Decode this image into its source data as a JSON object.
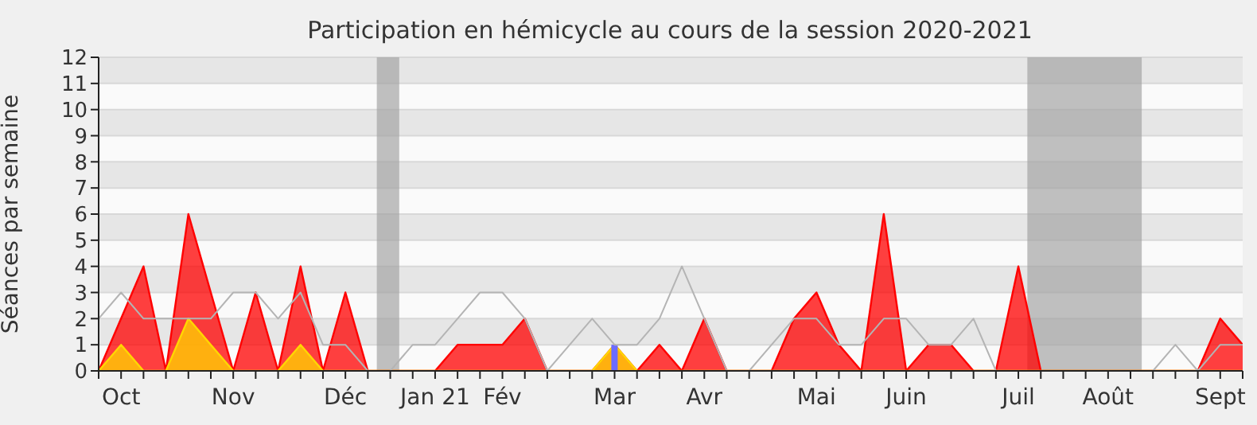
{
  "chart_data": {
    "type": "area",
    "title": "Participation en hémicycle au cours de la session 2020-2021",
    "ylabel": "Séances par semaine",
    "categories": [
      null,
      "Oct",
      null,
      null,
      null,
      null,
      "Nov",
      null,
      null,
      null,
      null,
      "Déc",
      null,
      null,
      null,
      "Jan 21",
      null,
      null,
      "Fév",
      null,
      null,
      null,
      null,
      "Mar",
      null,
      null,
      null,
      "Avr",
      null,
      null,
      null,
      null,
      "Mai",
      null,
      null,
      null,
      "Juin",
      null,
      null,
      null,
      null,
      "Juil",
      null,
      null,
      null,
      "Août",
      null,
      null,
      null,
      null,
      "Sept",
      null
    ],
    "ylim": [
      0,
      12
    ],
    "yticks": [
      0,
      1,
      2,
      3,
      4,
      5,
      6,
      7,
      8,
      9,
      10,
      11,
      12
    ],
    "grid": "y",
    "legend": false,
    "marker": "none",
    "series": [
      {
        "type": "line",
        "color": "#b4b4b4",
        "values": [
          2,
          3,
          2,
          2,
          2,
          2,
          3,
          3,
          2,
          3,
          1,
          1,
          0,
          0,
          1,
          1,
          2,
          3,
          3,
          2,
          0,
          1,
          2,
          1,
          1,
          2,
          4,
          2,
          0,
          0,
          1,
          2,
          2,
          1,
          1,
          2,
          2,
          1,
          1,
          2,
          0,
          0,
          0,
          0,
          0,
          0,
          0,
          0,
          1,
          0,
          1,
          1
        ]
      },
      {
        "color": "#ff0000",
        "values": [
          0,
          2,
          4,
          0,
          6,
          3,
          0,
          3,
          0,
          4,
          0,
          3,
          0,
          0,
          0,
          0,
          1,
          1,
          1,
          2,
          0,
          0,
          0,
          1,
          0,
          1,
          0,
          2,
          0,
          0,
          0,
          2,
          3,
          1,
          0,
          6,
          0,
          1,
          1,
          0,
          0,
          4,
          0,
          0,
          0,
          0,
          0,
          0,
          0,
          0,
          2,
          1
        ]
      },
      {
        "type": "area",
        "color": "#ffd700",
        "values": [
          0,
          1,
          0,
          0,
          2,
          1,
          0,
          0,
          0,
          1,
          0,
          0,
          0,
          0,
          0,
          0,
          0,
          0,
          0,
          0,
          0,
          0,
          0,
          1,
          0,
          0,
          0,
          0,
          0,
          0,
          0,
          0,
          0,
          0,
          0,
          0,
          0,
          0,
          0,
          0,
          0,
          0,
          0,
          0,
          0,
          0,
          0,
          0,
          0,
          0,
          0,
          0
        ]
      },
      {
        "type": "bar",
        "color": "#6b6bff",
        "values": [
          null,
          null,
          null,
          null,
          null,
          null,
          null,
          null,
          null,
          null,
          null,
          null,
          null,
          null,
          null,
          null,
          null,
          null,
          null,
          null,
          null,
          null,
          null,
          1,
          null,
          null,
          null,
          null,
          null,
          null,
          null,
          null,
          null,
          null,
          null,
          null,
          null,
          null,
          null,
          null,
          null,
          null,
          null,
          null,
          null,
          null,
          null,
          null,
          null,
          null,
          null,
          null
        ]
      }
    ]
  }
}
